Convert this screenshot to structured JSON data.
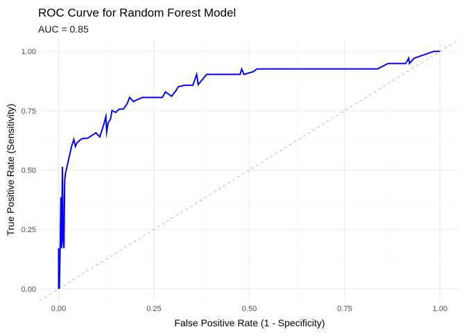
{
  "chart_data": {
    "type": "line",
    "title": "ROC Curve for Random Forest Model",
    "subtitle": "AUC = 0.85",
    "xlabel": "False Positive Rate (1 - Specificity)",
    "ylabel": "True Positive Rate (Sensitivity)",
    "xlim": [
      -0.05,
      1.05
    ],
    "ylim": [
      -0.05,
      1.05
    ],
    "x_ticks": [
      "0.00",
      "0.25",
      "0.50",
      "0.75",
      "1.00"
    ],
    "y_ticks": [
      "0.00",
      "0.25",
      "0.50",
      "0.75",
      "1.00"
    ],
    "grid": true,
    "series": [
      {
        "color": "#0000ff",
        "x": [
          0.0,
          0.0,
          0.002,
          0.004,
          0.006,
          0.008,
          0.01,
          0.012,
          0.014,
          0.016,
          0.018,
          0.022,
          0.026,
          0.03,
          0.034,
          0.04,
          0.044,
          0.048,
          0.058,
          0.066,
          0.076,
          0.098,
          0.108,
          0.112,
          0.118,
          0.124,
          0.126,
          0.13,
          0.136,
          0.14,
          0.15,
          0.154,
          0.16,
          0.17,
          0.18,
          0.186,
          0.196,
          0.22,
          0.262,
          0.272,
          0.28,
          0.296,
          0.306,
          0.314,
          0.33,
          0.352,
          0.362,
          0.366,
          0.388,
          0.476,
          0.48,
          0.486,
          0.51,
          0.52,
          0.54,
          0.836,
          0.864,
          0.87,
          0.91,
          0.918,
          0.92,
          0.932,
          0.984,
          1.0
        ],
        "y": [
          0.0,
          0.171,
          0.0,
          0.171,
          0.386,
          0.171,
          0.514,
          0.2,
          0.171,
          0.457,
          0.486,
          0.514,
          0.543,
          0.571,
          0.6,
          0.629,
          0.6,
          0.614,
          0.629,
          0.634,
          0.634,
          0.657,
          0.64,
          0.66,
          0.69,
          0.726,
          0.66,
          0.7,
          0.714,
          0.751,
          0.743,
          0.75,
          0.757,
          0.757,
          0.78,
          0.806,
          0.789,
          0.806,
          0.806,
          0.806,
          0.829,
          0.811,
          0.831,
          0.851,
          0.857,
          0.857,
          0.903,
          0.86,
          0.903,
          0.903,
          0.926,
          0.903,
          0.914,
          0.926,
          0.926,
          0.926,
          0.949,
          0.949,
          0.949,
          0.971,
          0.949,
          0.971,
          1.0,
          1.0
        ]
      }
    ],
    "reference_line": {
      "x": [
        0,
        1
      ],
      "y": [
        0,
        1
      ],
      "style": "dashed",
      "color": "#a6a6a6"
    }
  }
}
